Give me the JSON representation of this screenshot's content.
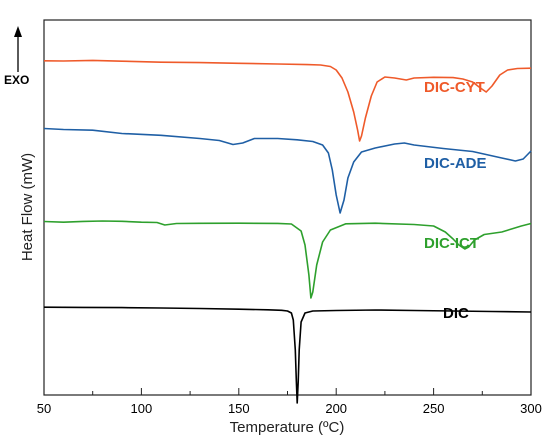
{
  "chart_data": {
    "type": "line",
    "xlabel": "Temperature (ºC)",
    "ylabel": "Heat Flow (mW)",
    "xlim": [
      50,
      300
    ],
    "x_ticks": [
      50,
      100,
      150,
      200,
      250,
      300
    ],
    "y_ticks_shown": false,
    "grid": false,
    "exo_annotation": "EXO",
    "exo_direction": "up",
    "series": [
      {
        "name": "DIC-CYT",
        "color": "#ef5a2a",
        "points": [
          [
            50,
            40.8
          ],
          [
            60,
            41.0
          ],
          [
            75,
            40.4
          ],
          [
            90,
            41.2
          ],
          [
            110,
            42.2
          ],
          [
            130,
            42.6
          ],
          [
            150,
            43.3
          ],
          [
            170,
            44.0
          ],
          [
            185,
            44.6
          ],
          [
            192,
            45.0
          ],
          [
            197,
            46.5
          ],
          [
            200,
            50
          ],
          [
            203,
            58
          ],
          [
            206,
            72
          ],
          [
            209,
            92
          ],
          [
            211,
            110
          ],
          [
            212,
            121
          ],
          [
            213,
            116
          ],
          [
            215,
            98
          ],
          [
            218,
            76
          ],
          [
            221,
            62
          ],
          [
            225,
            57
          ],
          [
            230,
            58
          ],
          [
            236,
            60
          ],
          [
            240,
            58
          ],
          [
            250,
            57.3
          ],
          [
            260,
            57.6
          ],
          [
            265,
            59
          ],
          [
            270,
            62
          ],
          [
            274,
            68
          ],
          [
            277,
            72
          ],
          [
            280,
            66
          ],
          [
            284,
            55
          ],
          [
            288,
            50
          ],
          [
            293,
            48.5
          ],
          [
            300,
            48.2
          ]
        ]
      },
      {
        "name": "DIC-ADE",
        "color": "#1f5fa5",
        "points": [
          [
            50,
            108.5
          ],
          [
            60,
            109.5
          ],
          [
            75,
            110.2
          ],
          [
            90,
            113.5
          ],
          [
            110,
            115.3
          ],
          [
            130,
            118.5
          ],
          [
            140,
            120.5
          ],
          [
            147,
            124.5
          ],
          [
            152,
            123
          ],
          [
            158,
            118.5
          ],
          [
            170,
            118.5
          ],
          [
            180,
            119.8
          ],
          [
            188,
            121.5
          ],
          [
            193,
            125
          ],
          [
            196,
            133
          ],
          [
            198,
            150
          ],
          [
            200,
            175
          ],
          [
            202,
            193
          ],
          [
            204,
            180
          ],
          [
            206,
            158
          ],
          [
            209,
            142
          ],
          [
            213,
            132
          ],
          [
            220,
            128
          ],
          [
            230,
            124
          ],
          [
            235,
            123
          ],
          [
            240,
            125
          ],
          [
            255,
            128.5
          ],
          [
            270,
            131.5
          ],
          [
            285,
            138
          ],
          [
            292,
            141
          ],
          [
            296,
            139
          ],
          [
            300,
            131
          ]
        ]
      },
      {
        "name": "DIC-ICT",
        "color": "#2ea02d",
        "points": [
          [
            50,
            201.5
          ],
          [
            60,
            202.2
          ],
          [
            70,
            201.4
          ],
          [
            80,
            201.0
          ],
          [
            90,
            201.3
          ],
          [
            100,
            202.2
          ],
          [
            108,
            202.5
          ],
          [
            112,
            205
          ],
          [
            118,
            203.5
          ],
          [
            130,
            203.3
          ],
          [
            150,
            203.2
          ],
          [
            170,
            203.4
          ],
          [
            177,
            204
          ],
          [
            182,
            211
          ],
          [
            184,
            225
          ],
          [
            186,
            255
          ],
          [
            187,
            278
          ],
          [
            188,
            272
          ],
          [
            190,
            245
          ],
          [
            193,
            222
          ],
          [
            197,
            210
          ],
          [
            205,
            203.8
          ],
          [
            220,
            203.2
          ],
          [
            240,
            204.5
          ],
          [
            250,
            206
          ],
          [
            256,
            212
          ],
          [
            260,
            219
          ],
          [
            263,
            225
          ],
          [
            266,
            229
          ],
          [
            268,
            227
          ],
          [
            271,
            220
          ],
          [
            276,
            214.5
          ],
          [
            285,
            212
          ],
          [
            295,
            206
          ],
          [
            300,
            203.5
          ]
        ]
      },
      {
        "name": "DIC",
        "color": "#000000",
        "points": [
          [
            50,
            287.2
          ],
          [
            70,
            287.4
          ],
          [
            90,
            287.6
          ],
          [
            110,
            288
          ],
          [
            130,
            288.5
          ],
          [
            150,
            289.2
          ],
          [
            165,
            289.8
          ],
          [
            172,
            290.3
          ],
          [
            175,
            291
          ],
          [
            177,
            293
          ],
          [
            178,
            300
          ],
          [
            179,
            330
          ],
          [
            179.5,
            360
          ],
          [
            180,
            383
          ],
          [
            180.5,
            362
          ],
          [
            181,
            330
          ],
          [
            182,
            302
          ],
          [
            184,
            293
          ],
          [
            188,
            291
          ],
          [
            200,
            290.5
          ],
          [
            220,
            290
          ],
          [
            240,
            290.5
          ],
          [
            260,
            291
          ],
          [
            280,
            291.5
          ],
          [
            300,
            292
          ]
        ]
      }
    ]
  }
}
